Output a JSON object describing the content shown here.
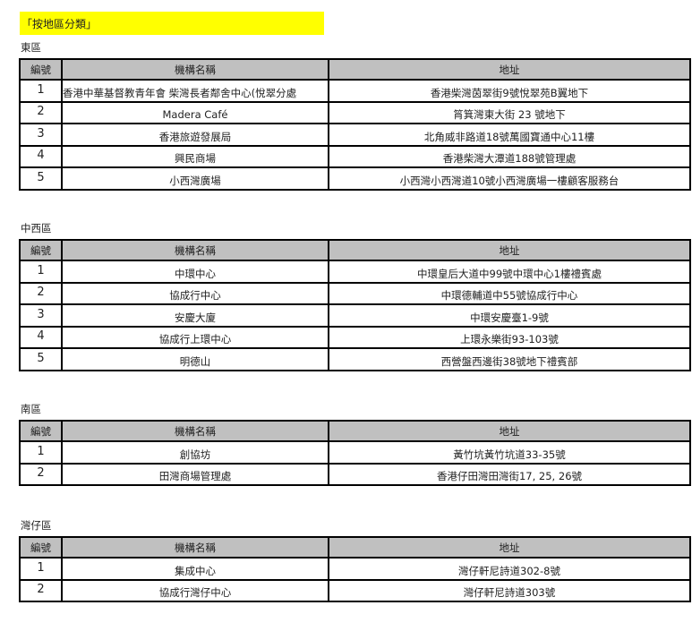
{
  "title": "「按地區分類」",
  "headers": {
    "no": "編號",
    "name": "機構名稱",
    "address": "地址"
  },
  "sections": [
    {
      "label": "東區",
      "rows": [
        {
          "no": "1",
          "name": "香港中華基督教青年會 柴灣長者鄰舍中心(悅翠分處",
          "address": "香港柴灣茵翠街9號悅翠苑B翼地下"
        },
        {
          "no": "2",
          "name": "Madera Café",
          "address": "筲箕灣東大街 23 號地下"
        },
        {
          "no": "3",
          "name": "香港旅遊發展局",
          "address": "北角威非路道18號萬國寶通中心11樓"
        },
        {
          "no": "4",
          "name": "興民商場",
          "address": "香港柴灣大潭道188號管理處"
        },
        {
          "no": "5",
          "name": "小西灣廣場",
          "address": "小西灣小西灣道10號小西灣廣場一樓顧客服務台"
        }
      ]
    },
    {
      "label": "中西區",
      "rows": [
        {
          "no": "1",
          "name": "中環中心",
          "address": "中環皇后大道中99號中環中心1樓禮賓處"
        },
        {
          "no": "2",
          "name": "協成行中心",
          "address": "中環德輔道中55號協成行中心"
        },
        {
          "no": "3",
          "name": "安慶大廈",
          "address": "中環安慶臺1-9號"
        },
        {
          "no": "4",
          "name": "協成行上環中心",
          "address": "上環永樂街93-103號"
        },
        {
          "no": "5",
          "name": "明德山",
          "address": "西營盤西邊街38號地下禮賓部"
        }
      ]
    },
    {
      "label": "南區",
      "rows": [
        {
          "no": "1",
          "name": "創協坊",
          "address": "黃竹坑黃竹坑道33-35號"
        },
        {
          "no": "2",
          "name": "田灣商場管理處",
          "address": "香港仔田灣田灣街17, 25, 26號"
        }
      ]
    },
    {
      "label": "灣仔區",
      "rows": [
        {
          "no": "1",
          "name": "集成中心",
          "address": "灣仔軒尼詩道302-8號"
        },
        {
          "no": "2",
          "name": "協成行灣仔中心",
          "address": "灣仔軒尼詩道303號"
        }
      ]
    }
  ]
}
